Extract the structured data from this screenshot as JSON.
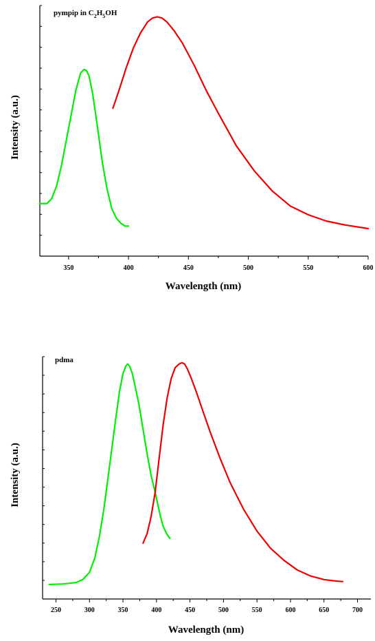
{
  "chart_data": [
    {
      "type": "line",
      "title": "pympip in C2H5OH",
      "title_parts": {
        "prefix": "pympip in C",
        "sub1": "2",
        "mid": "H",
        "sub2": "5",
        "suffix": "OH"
      },
      "xlabel": "Wavelength (nm)",
      "ylabel": "Intensity (a.u.)",
      "xlim": [
        326,
        600
      ],
      "ylim": [
        0,
        1.0
      ],
      "xticks": [
        350,
        400,
        450,
        500,
        550,
        600
      ],
      "yticks_count": 12,
      "grid": false,
      "series": [
        {
          "color": "#00ee00",
          "x": [
            326,
            332,
            336,
            340,
            344,
            348,
            352,
            356,
            360,
            363,
            365,
            367,
            370,
            374,
            378,
            382,
            386,
            390,
            394,
            397,
            400
          ],
          "y": [
            0.21,
            0.21,
            0.23,
            0.28,
            0.36,
            0.46,
            0.56,
            0.66,
            0.73,
            0.745,
            0.74,
            0.72,
            0.65,
            0.52,
            0.38,
            0.27,
            0.19,
            0.15,
            0.13,
            0.12,
            0.12
          ]
        },
        {
          "color": "#ee0000",
          "x": [
            387,
            392,
            398,
            404,
            410,
            416,
            420,
            424,
            428,
            432,
            438,
            445,
            455,
            465,
            475,
            490,
            505,
            520,
            535,
            550,
            565,
            580,
            600
          ],
          "y": [
            0.59,
            0.66,
            0.75,
            0.83,
            0.89,
            0.935,
            0.95,
            0.955,
            0.95,
            0.935,
            0.9,
            0.85,
            0.76,
            0.66,
            0.57,
            0.44,
            0.34,
            0.26,
            0.2,
            0.165,
            0.14,
            0.125,
            0.11
          ]
        }
      ]
    },
    {
      "type": "line",
      "title": "pdma",
      "xlabel": "Wavelength (nm)",
      "ylabel": "Intensity (a.u.)",
      "xlim": [
        230,
        720
      ],
      "ylim": [
        0,
        1.0
      ],
      "xticks": [
        250,
        300,
        350,
        400,
        450,
        500,
        550,
        600,
        650,
        700
      ],
      "yticks_count": 13,
      "grid": false,
      "series": [
        {
          "color": "#00ee00",
          "x": [
            240,
            260,
            280,
            290,
            300,
            308,
            315,
            322,
            330,
            338,
            345,
            350,
            354,
            357,
            360,
            364,
            368,
            374,
            380,
            386,
            392,
            398,
            402,
            406,
            410,
            415,
            420
          ],
          "y": [
            0.06,
            0.062,
            0.068,
            0.08,
            0.11,
            0.17,
            0.26,
            0.38,
            0.55,
            0.72,
            0.86,
            0.93,
            0.96,
            0.97,
            0.96,
            0.93,
            0.88,
            0.8,
            0.7,
            0.6,
            0.51,
            0.44,
            0.39,
            0.34,
            0.3,
            0.27,
            0.25
          ]
        },
        {
          "color": "#ee0000",
          "x": [
            380,
            386,
            392,
            398,
            404,
            410,
            416,
            422,
            428,
            434,
            438,
            442,
            446,
            452,
            460,
            470,
            480,
            495,
            510,
            530,
            550,
            570,
            590,
            610,
            630,
            650,
            665,
            678
          ],
          "y": [
            0.23,
            0.27,
            0.34,
            0.44,
            0.58,
            0.72,
            0.83,
            0.91,
            0.955,
            0.97,
            0.975,
            0.97,
            0.95,
            0.91,
            0.85,
            0.77,
            0.69,
            0.58,
            0.48,
            0.37,
            0.28,
            0.21,
            0.16,
            0.12,
            0.095,
            0.08,
            0.075,
            0.072
          ]
        }
      ]
    }
  ]
}
